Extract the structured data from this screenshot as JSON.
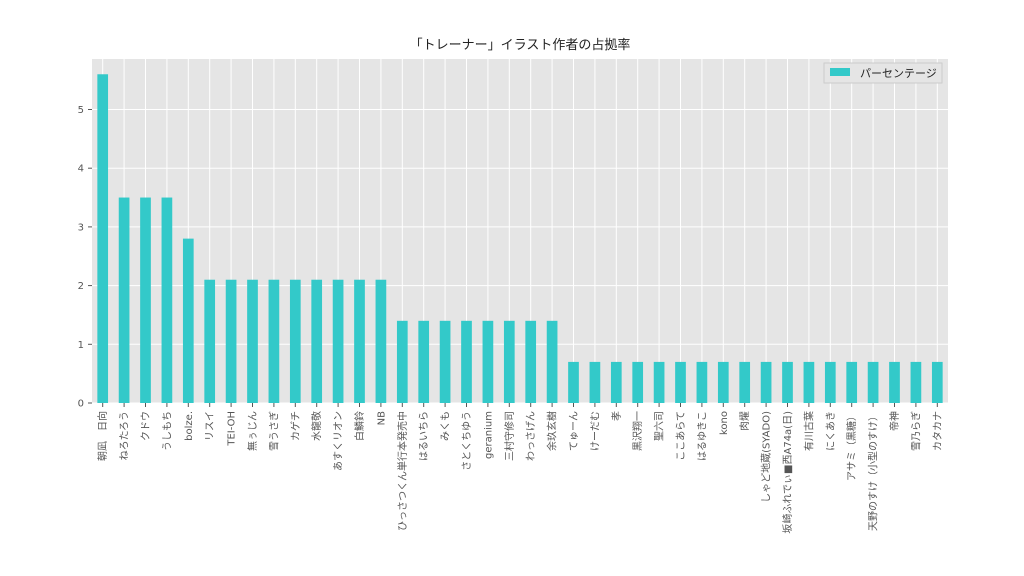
{
  "chart_data": {
    "type": "bar",
    "title": "「トレーナー」イラスト作者の占拠率",
    "xlabel": "",
    "ylabel": "",
    "ylim": [
      0,
      5.86
    ],
    "yticks": [
      0,
      1,
      2,
      3,
      4,
      5
    ],
    "grid": true,
    "legend_position": "top-right",
    "bar_color": "#33c9c9",
    "background_color": "#e5e5e5",
    "series": [
      {
        "name": "パーセンテージ",
        "values": [
          5.6,
          3.5,
          3.5,
          3.5,
          2.8,
          2.1,
          2.1,
          2.1,
          2.1,
          2.1,
          2.1,
          2.1,
          2.1,
          2.1,
          1.4,
          1.4,
          1.4,
          1.4,
          1.4,
          1.4,
          1.4,
          1.4,
          0.7,
          0.7,
          0.7,
          0.7,
          0.7,
          0.7,
          0.7,
          0.7,
          0.7,
          0.7,
          0.7,
          0.7,
          0.7,
          0.7,
          0.7,
          0.7,
          0.7,
          0.7
        ]
      }
    ],
    "categories": [
      "朝凪　日向",
      "ねろたろう",
      "クドウ",
      "うしもち",
      "bolze.",
      "リスイ",
      "TEI-OH",
      "無ぅじん",
      "雪うさぎ",
      "カゲチ",
      "水龍敬",
      "あすくリオン",
      "白鱗鈴",
      "NB",
      "ひっさつくん単行本発売中",
      "はるいちら",
      "みくも",
      "さとくちゆう",
      "geranium",
      "三村守修司",
      "わっさげん",
      "余玖玄樹",
      "てゅーん",
      "けーだむ",
      "孝",
      "黒沢翔一",
      "聖六司",
      "ここあらて",
      "はるゆきこ",
      "kono",
      "肉燿",
      "しゃど地蔵(SYADO)",
      "坂崎ふれでぃ■西A74a(日)",
      "有川古葉",
      "にくあき",
      "アサミ（黒糖）",
      "天野のすけ（小型のすけ）",
      "帝神",
      "雪乃らぎ",
      "カタカナ"
    ]
  }
}
